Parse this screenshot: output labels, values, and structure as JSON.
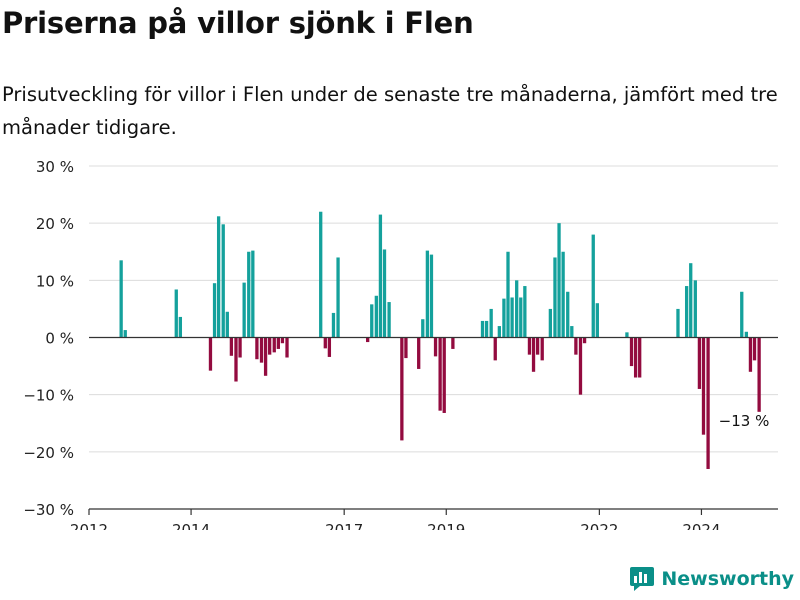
{
  "title": "Priserna på villor sjönk i Flen",
  "subtitle": "Prisutveckling för villor i Flen under de senaste tre månaderna, jämfört med tre månader tidigare.",
  "brand": "Newsworthy",
  "colors": {
    "positive": "#14a19c",
    "negative": "#930b3f",
    "brand": "#0a8f88"
  },
  "chart_data": {
    "type": "bar",
    "xlim": [
      2012,
      2025.5
    ],
    "ylim": [
      -30,
      30
    ],
    "y_ticks": [
      {
        "value": 30,
        "label": "30 %"
      },
      {
        "value": 20,
        "label": "20 %"
      },
      {
        "value": 10,
        "label": "10 %"
      },
      {
        "value": 0,
        "label": "0 %"
      },
      {
        "value": -10,
        "label": "−10 %"
      },
      {
        "value": -20,
        "label": "−20 %"
      },
      {
        "value": -30,
        "label": "−30 %"
      }
    ],
    "x_ticks": [
      {
        "value": 2012,
        "label": "2012"
      },
      {
        "value": 2014,
        "label": "2014"
      },
      {
        "value": 2017,
        "label": "2017"
      },
      {
        "value": 2019,
        "label": "2019"
      },
      {
        "value": 2022,
        "label": "2022"
      },
      {
        "value": 2024,
        "label": "2024"
      }
    ],
    "grid": true,
    "annotation": {
      "x": 2025.04,
      "y": -13,
      "label": "−13 %"
    },
    "points": [
      {
        "x": 2012.63,
        "y": 13.5
      },
      {
        "x": 2012.71,
        "y": 1.3
      },
      {
        "x": 2013.71,
        "y": 8.4
      },
      {
        "x": 2013.79,
        "y": 3.6
      },
      {
        "x": 2014.38,
        "y": -5.8
      },
      {
        "x": 2014.46,
        "y": 9.5
      },
      {
        "x": 2014.54,
        "y": 21.2
      },
      {
        "x": 2014.63,
        "y": 19.8
      },
      {
        "x": 2014.71,
        "y": 4.5
      },
      {
        "x": 2014.79,
        "y": -3.2
      },
      {
        "x": 2014.88,
        "y": -7.7
      },
      {
        "x": 2014.96,
        "y": -3.5
      },
      {
        "x": 2015.04,
        "y": 9.6
      },
      {
        "x": 2015.13,
        "y": 15.0
      },
      {
        "x": 2015.21,
        "y": 15.2
      },
      {
        "x": 2015.29,
        "y": -3.8
      },
      {
        "x": 2015.38,
        "y": -4.4
      },
      {
        "x": 2015.46,
        "y": -6.7
      },
      {
        "x": 2015.54,
        "y": -3.0
      },
      {
        "x": 2015.63,
        "y": -2.6
      },
      {
        "x": 2015.71,
        "y": -2.0
      },
      {
        "x": 2015.79,
        "y": -1.0
      },
      {
        "x": 2015.88,
        "y": -3.5
      },
      {
        "x": 2016.54,
        "y": 22.0
      },
      {
        "x": 2016.63,
        "y": -1.9
      },
      {
        "x": 2016.71,
        "y": -3.4
      },
      {
        "x": 2016.79,
        "y": 4.3
      },
      {
        "x": 2016.88,
        "y": 14.0
      },
      {
        "x": 2017.46,
        "y": -0.8
      },
      {
        "x": 2017.54,
        "y": 5.8
      },
      {
        "x": 2017.63,
        "y": 7.3
      },
      {
        "x": 2017.71,
        "y": 21.5
      },
      {
        "x": 2017.79,
        "y": 15.4
      },
      {
        "x": 2017.88,
        "y": 6.2
      },
      {
        "x": 2018.13,
        "y": -18.0
      },
      {
        "x": 2018.21,
        "y": -3.6
      },
      {
        "x": 2018.46,
        "y": -5.5
      },
      {
        "x": 2018.54,
        "y": 3.2
      },
      {
        "x": 2018.63,
        "y": 15.2
      },
      {
        "x": 2018.71,
        "y": 14.5
      },
      {
        "x": 2018.79,
        "y": -3.3
      },
      {
        "x": 2018.88,
        "y": -12.8
      },
      {
        "x": 2018.96,
        "y": -13.2
      },
      {
        "x": 2019.13,
        "y": -2.0
      },
      {
        "x": 2019.71,
        "y": 2.9
      },
      {
        "x": 2019.79,
        "y": 2.9
      },
      {
        "x": 2019.88,
        "y": 5.0
      },
      {
        "x": 2019.96,
        "y": -4.0
      },
      {
        "x": 2020.04,
        "y": 2.0
      },
      {
        "x": 2020.13,
        "y": 6.8
      },
      {
        "x": 2020.21,
        "y": 15.0
      },
      {
        "x": 2020.29,
        "y": 7.0
      },
      {
        "x": 2020.38,
        "y": 10.0
      },
      {
        "x": 2020.46,
        "y": 7.0
      },
      {
        "x": 2020.54,
        "y": 9.0
      },
      {
        "x": 2020.63,
        "y": -3.0
      },
      {
        "x": 2020.71,
        "y": -6.0
      },
      {
        "x": 2020.79,
        "y": -3.0
      },
      {
        "x": 2020.88,
        "y": -4.0
      },
      {
        "x": 2021.04,
        "y": 5.0
      },
      {
        "x": 2021.13,
        "y": 14.0
      },
      {
        "x": 2021.21,
        "y": 20.0
      },
      {
        "x": 2021.29,
        "y": 15.0
      },
      {
        "x": 2021.38,
        "y": 8.0
      },
      {
        "x": 2021.46,
        "y": 2.0
      },
      {
        "x": 2021.54,
        "y": -3.0
      },
      {
        "x": 2021.63,
        "y": -10.0
      },
      {
        "x": 2021.71,
        "y": -1.0
      },
      {
        "x": 2021.88,
        "y": 18.0
      },
      {
        "x": 2021.96,
        "y": 6.0
      },
      {
        "x": 2022.54,
        "y": 0.9
      },
      {
        "x": 2022.63,
        "y": -5.0
      },
      {
        "x": 2022.71,
        "y": -7.0
      },
      {
        "x": 2022.79,
        "y": -7.0
      },
      {
        "x": 2023.54,
        "y": 5.0
      },
      {
        "x": 2023.71,
        "y": 9.0
      },
      {
        "x": 2023.79,
        "y": 13.0
      },
      {
        "x": 2023.88,
        "y": 10.0
      },
      {
        "x": 2023.96,
        "y": -9.0
      },
      {
        "x": 2024.04,
        "y": -17.0
      },
      {
        "x": 2024.13,
        "y": -23.0
      },
      {
        "x": 2024.79,
        "y": 8.0
      },
      {
        "x": 2024.88,
        "y": 1.0
      },
      {
        "x": 2024.96,
        "y": -6.0
      },
      {
        "x": 2025.04,
        "y": -4.0
      },
      {
        "x": 2025.13,
        "y": -13.0
      }
    ]
  }
}
